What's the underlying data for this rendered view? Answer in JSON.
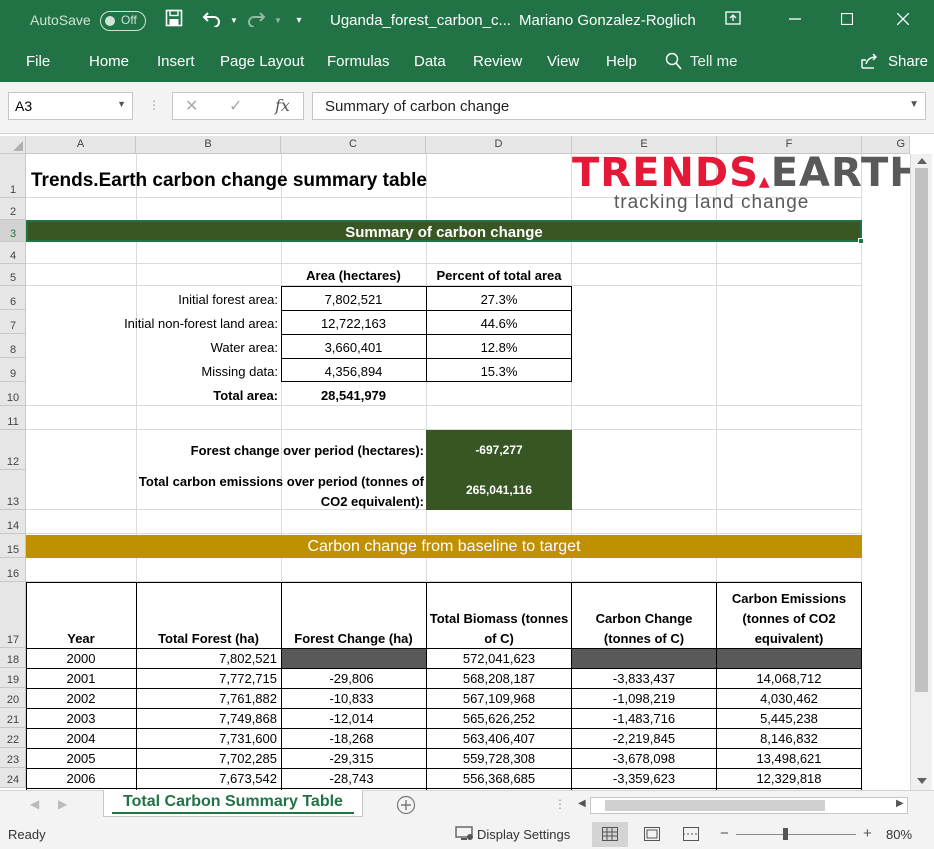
{
  "titlebar": {
    "autosave_label": "AutoSave",
    "autosave_state": "Off",
    "filename": "Uganda_forest_carbon_c...",
    "user": "Mariano Gonzalez-Roglich"
  },
  "ribbon": {
    "tabs": [
      "File",
      "Home",
      "Insert",
      "Page Layout",
      "Formulas",
      "Data",
      "Review",
      "View",
      "Help"
    ],
    "tell_me": "Tell me",
    "share": "Share"
  },
  "formula_bar": {
    "name_box": "A3",
    "fx": "fx",
    "content": "Summary of carbon change"
  },
  "columns": [
    "A",
    "B",
    "C",
    "D",
    "E",
    "F",
    "G"
  ],
  "rows": [
    "1",
    "2",
    "3",
    "4",
    "5",
    "6",
    "7",
    "8",
    "9",
    "10",
    "11",
    "12",
    "13",
    "14",
    "15",
    "16",
    "17",
    "18",
    "19",
    "20",
    "21",
    "22",
    "23",
    "24"
  ],
  "sheet": {
    "title": "Trends.Earth carbon change summary table",
    "logo_main_red": "TRENDS",
    "logo_main_gray": "EARTH",
    "logo_tagline": "tracking land change",
    "summary_banner": "Summary of carbon change",
    "col_area": "Area (hectares)",
    "col_percent": "Percent of total area",
    "summary_rows": [
      {
        "label": "Initial forest area:",
        "area": "7,802,521",
        "pct": "27.3%"
      },
      {
        "label": "Initial non-forest land area:",
        "area": "12,722,163",
        "pct": "44.6%"
      },
      {
        "label": "Water area:",
        "area": "3,660,401",
        "pct": "12.8%"
      },
      {
        "label": "Missing data:",
        "area": "4,356,894",
        "pct": "15.3%"
      }
    ],
    "total_label": "Total area:",
    "total_value": "28,541,979",
    "forest_change_label": "Forest change over period (hectares):",
    "forest_change_value": "-697,277",
    "emissions_label_1": "Total carbon emissions over period (tonnes of",
    "emissions_label_2": "CO2 equivalent):",
    "emissions_value": "265,041,116",
    "baseline_banner": "Carbon change from baseline to target",
    "table_headers": {
      "year": "Year",
      "total_forest": "Total Forest (ha)",
      "forest_change": "Forest Change (ha)",
      "biomass_1": "Total Biomass (tonnes",
      "biomass_2": "of C)",
      "carbon_change_1": "Carbon Change",
      "carbon_change_2": "(tonnes of C)",
      "emissions_1": "Carbon Emissions",
      "emissions_2": "(tonnes of CO2",
      "emissions_3": "equivalent)"
    },
    "table_rows": [
      {
        "year": "2000",
        "forest": "7,802,521",
        "change": "",
        "biomass": "572,041,623",
        "carbon": "",
        "emissions": ""
      },
      {
        "year": "2001",
        "forest": "7,772,715",
        "change": "-29,806",
        "biomass": "568,208,187",
        "carbon": "-3,833,437",
        "emissions": "14,068,712"
      },
      {
        "year": "2002",
        "forest": "7,761,882",
        "change": "-10,833",
        "biomass": "567,109,968",
        "carbon": "-1,098,219",
        "emissions": "4,030,462"
      },
      {
        "year": "2003",
        "forest": "7,749,868",
        "change": "-12,014",
        "biomass": "565,626,252",
        "carbon": "-1,483,716",
        "emissions": "5,445,238"
      },
      {
        "year": "2004",
        "forest": "7,731,600",
        "change": "-18,268",
        "biomass": "563,406,407",
        "carbon": "-2,219,845",
        "emissions": "8,146,832"
      },
      {
        "year": "2005",
        "forest": "7,702,285",
        "change": "-29,315",
        "biomass": "559,728,308",
        "carbon": "-3,678,098",
        "emissions": "13,498,621"
      },
      {
        "year": "2006",
        "forest": "7,673,542",
        "change": "-28,743",
        "biomass": "556,368,685",
        "carbon": "-3,359,623",
        "emissions": "12,329,818"
      }
    ]
  },
  "sheet_tab": "Total Carbon Summary Table",
  "status": {
    "ready": "Ready",
    "display_settings": "Display Settings",
    "zoom": "80%"
  },
  "colors": {
    "excel_green": "#217346",
    "dark_green": "#375623",
    "gold": "#bf9000",
    "logo_red": "#e31937"
  }
}
